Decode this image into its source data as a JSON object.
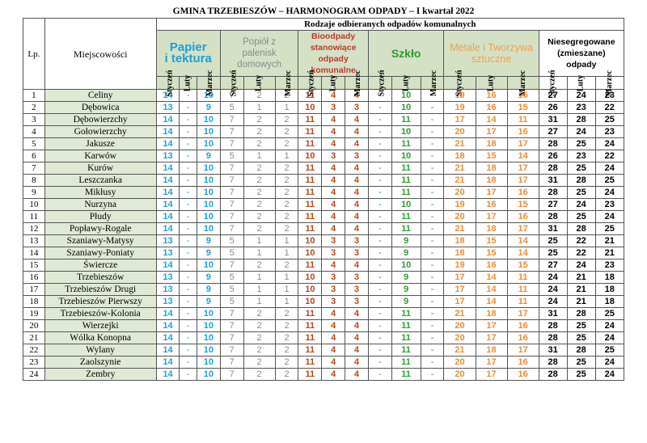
{
  "title": "GMINA TRZEBIESZÓW – HARMONOGRAM ODPADY – I kwartał 2022",
  "header": {
    "lp": "Lp.",
    "location": "Miejscowości",
    "group": "Rodzaje odbieranych odpadów komunalnych",
    "categories": [
      {
        "key": "paper",
        "line1": "Papier",
        "line2": "i tektura",
        "line3": "",
        "line4": ""
      },
      {
        "key": "ash",
        "line1": "Popiół z",
        "line2": "palenisk",
        "line3": "domowych",
        "line4": ""
      },
      {
        "key": "bio",
        "line1": "Bioodpady",
        "line2": "stanowiące",
        "line3": "odpady",
        "line4": "komunalne"
      },
      {
        "key": "glass",
        "line1": "Szkło",
        "line2": "",
        "line3": "",
        "line4": ""
      },
      {
        "key": "metal",
        "line1": "Metale i Tworzywa",
        "line2": "sztuczne",
        "line3": "",
        "line4": ""
      },
      {
        "key": "mixed",
        "line1": "Niesegregowane",
        "line2": "(zmieszane)",
        "line3": "odpady",
        "line4": ""
      }
    ],
    "months": [
      "Styczeń",
      "Luty",
      "Marzec"
    ]
  },
  "rows": [
    {
      "lp": "1",
      "name": "Celiny",
      "v": [
        "14",
        "-",
        "10",
        "7",
        "2",
        "2",
        "11",
        "4",
        "4",
        "-",
        "10",
        "-",
        "19",
        "16",
        "15",
        "27",
        "24",
        "23"
      ]
    },
    {
      "lp": "2",
      "name": "Dębowica",
      "v": [
        "13",
        "-",
        "9",
        "5",
        "1",
        "1",
        "10",
        "3",
        "3",
        "-",
        "10",
        "-",
        "19",
        "16",
        "15",
        "26",
        "23",
        "22"
      ]
    },
    {
      "lp": "3",
      "name": "Dębowierzchy",
      "v": [
        "14",
        "-",
        "10",
        "7",
        "2",
        "2",
        "11",
        "4",
        "4",
        "-",
        "11",
        "-",
        "17",
        "14",
        "11",
        "31",
        "28",
        "25"
      ]
    },
    {
      "lp": "4",
      "name": "Gołowierzchy",
      "v": [
        "14",
        "-",
        "10",
        "7",
        "2",
        "2",
        "11",
        "4",
        "4",
        "-",
        "10",
        "-",
        "20",
        "17",
        "16",
        "27",
        "24",
        "23"
      ]
    },
    {
      "lp": "5",
      "name": "Jakusze",
      "v": [
        "14",
        "-",
        "10",
        "7",
        "2",
        "2",
        "11",
        "4",
        "4",
        "-",
        "11",
        "-",
        "21",
        "18",
        "17",
        "28",
        "25",
        "24"
      ]
    },
    {
      "lp": "6",
      "name": "Karwów",
      "v": [
        "13",
        "-",
        "9",
        "5",
        "1",
        "1",
        "10",
        "3",
        "3",
        "-",
        "10",
        "-",
        "18",
        "15",
        "14",
        "26",
        "23",
        "22"
      ]
    },
    {
      "lp": "7",
      "name": "Kurów",
      "v": [
        "14",
        "-",
        "10",
        "7",
        "2",
        "2",
        "11",
        "4",
        "4",
        "-",
        "11",
        "-",
        "21",
        "18",
        "17",
        "28",
        "25",
        "24"
      ]
    },
    {
      "lp": "8",
      "name": "Leszczanka",
      "v": [
        "14",
        "-",
        "10",
        "7",
        "2",
        "2",
        "11",
        "4",
        "4",
        "-",
        "11",
        "-",
        "21",
        "18",
        "17",
        "31",
        "28",
        "25"
      ]
    },
    {
      "lp": "9",
      "name": "Mikłusy",
      "v": [
        "14",
        "-",
        "10",
        "7",
        "2",
        "2",
        "11",
        "4",
        "4",
        "-",
        "11",
        "-",
        "20",
        "17",
        "16",
        "28",
        "25",
        "24"
      ]
    },
    {
      "lp": "10",
      "name": "Nurzyna",
      "v": [
        "14",
        "-",
        "10",
        "7",
        "2",
        "2",
        "11",
        "4",
        "4",
        "-",
        "10",
        "-",
        "19",
        "16",
        "15",
        "27",
        "24",
        "23"
      ]
    },
    {
      "lp": "11",
      "name": "Płudy",
      "v": [
        "14",
        "-",
        "10",
        "7",
        "2",
        "2",
        "11",
        "4",
        "4",
        "-",
        "11",
        "-",
        "20",
        "17",
        "16",
        "28",
        "25",
        "24"
      ]
    },
    {
      "lp": "12",
      "name": "Popławy-Rogale",
      "v": [
        "14",
        "-",
        "10",
        "7",
        "2",
        "2",
        "11",
        "4",
        "4",
        "-",
        "11",
        "-",
        "21",
        "18",
        "17",
        "31",
        "28",
        "25"
      ]
    },
    {
      "lp": "13",
      "name": "Szaniawy-Matysy",
      "v": [
        "13",
        "-",
        "9",
        "5",
        "1",
        "1",
        "10",
        "3",
        "3",
        "-",
        "9",
        "-",
        "18",
        "15",
        "14",
        "25",
        "22",
        "21"
      ]
    },
    {
      "lp": "14",
      "name": "Szaniawy-Poniaty",
      "v": [
        "13",
        "-",
        "9",
        "5",
        "1",
        "1",
        "10",
        "3",
        "3",
        "-",
        "9",
        "-",
        "18",
        "15",
        "14",
        "25",
        "22",
        "21"
      ]
    },
    {
      "lp": "15",
      "name": "Świercze",
      "v": [
        "14",
        "-",
        "10",
        "7",
        "2",
        "2",
        "11",
        "4",
        "4",
        "-",
        "10",
        "-",
        "19",
        "16",
        "15",
        "27",
        "24",
        "23"
      ]
    },
    {
      "lp": "16",
      "name": "Trzebieszów",
      "v": [
        "13",
        "-",
        "9",
        "5",
        "1",
        "1",
        "10",
        "3",
        "3",
        "-",
        "9",
        "-",
        "17",
        "14",
        "11",
        "24",
        "21",
        "18"
      ]
    },
    {
      "lp": "17",
      "name": "Trzebieszów Drugi",
      "v": [
        "13",
        "-",
        "9",
        "5",
        "1",
        "1",
        "10",
        "3",
        "3",
        "-",
        "9",
        "-",
        "17",
        "14",
        "11",
        "24",
        "21",
        "18"
      ]
    },
    {
      "lp": "18",
      "name": "Trzebieszów Pierwszy",
      "v": [
        "13",
        "-",
        "9",
        "5",
        "1",
        "1",
        "10",
        "3",
        "3",
        "-",
        "9",
        "-",
        "17",
        "14",
        "11",
        "24",
        "21",
        "18"
      ]
    },
    {
      "lp": "19",
      "name": "Trzebieszów-Kolonia",
      "v": [
        "14",
        "-",
        "10",
        "7",
        "2",
        "2",
        "11",
        "4",
        "4",
        "-",
        "11",
        "-",
        "21",
        "18",
        "17",
        "31",
        "28",
        "25"
      ]
    },
    {
      "lp": "20",
      "name": "Wierzejki",
      "v": [
        "14",
        "-",
        "10",
        "7",
        "2",
        "2",
        "11",
        "4",
        "4",
        "-",
        "11",
        "-",
        "20",
        "17",
        "16",
        "28",
        "25",
        "24"
      ]
    },
    {
      "lp": "21",
      "name": "Wólka Konopna",
      "v": [
        "14",
        "-",
        "10",
        "7",
        "2",
        "2",
        "11",
        "4",
        "4",
        "-",
        "11",
        "-",
        "20",
        "17",
        "16",
        "28",
        "25",
        "24"
      ]
    },
    {
      "lp": "22",
      "name": "Wylany",
      "v": [
        "14",
        "-",
        "10",
        "7",
        "2",
        "2",
        "11",
        "4",
        "4",
        "-",
        "11",
        "-",
        "21",
        "18",
        "17",
        "31",
        "28",
        "25"
      ]
    },
    {
      "lp": "23",
      "name": "Zaolszynie",
      "v": [
        "14",
        "-",
        "10",
        "7",
        "2",
        "2",
        "11",
        "4",
        "4",
        "-",
        "11",
        "-",
        "20",
        "17",
        "16",
        "28",
        "25",
        "24"
      ]
    },
    {
      "lp": "24",
      "name": "Zembry",
      "v": [
        "14",
        "-",
        "10",
        "7",
        "2",
        "2",
        "11",
        "4",
        "4",
        "-",
        "11",
        "-",
        "20",
        "17",
        "16",
        "28",
        "25",
        "24"
      ]
    }
  ],
  "colors": {
    "paper": "#1ea0d8",
    "ash": "#8a8a8a",
    "bio": "#b5481c",
    "glass": "#2e9c2e",
    "metal": "#ef8c2f",
    "mixed": "#000000",
    "header_green": "#d4e1c5",
    "location_bg": "#e0e9d6"
  }
}
